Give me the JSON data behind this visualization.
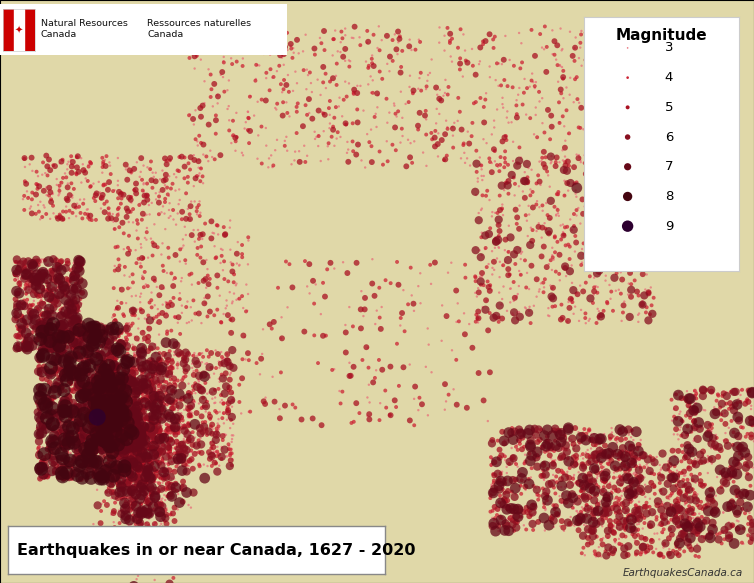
{
  "title": "Earthquakes in or near Canada, 1627 - 2020",
  "credit_right": "EarthquakesCanada.ca",
  "legend_title": "Magnitude",
  "magnitude_levels": [
    3,
    4,
    5,
    6,
    7,
    8,
    9
  ],
  "mag_sizes": [
    3,
    8,
    18,
    35,
    60,
    100,
    150
  ],
  "mag_colors": [
    "#e8707a",
    "#cc2233",
    "#aa1122",
    "#881020",
    "#660818",
    "#440510",
    "#2d0030"
  ],
  "ocean_color": "#b8d4e8",
  "land_color": "#e8dfc0",
  "highland_color": "#c8e0b0",
  "mountain_color": "#c8b090",
  "border_color": "#999999",
  "grid_color": "#cccccc",
  "central_longitude": -96,
  "central_latitude": 60,
  "std_parallels": [
    49,
    77
  ],
  "map_extent": [
    -145,
    -45,
    40,
    85
  ]
}
